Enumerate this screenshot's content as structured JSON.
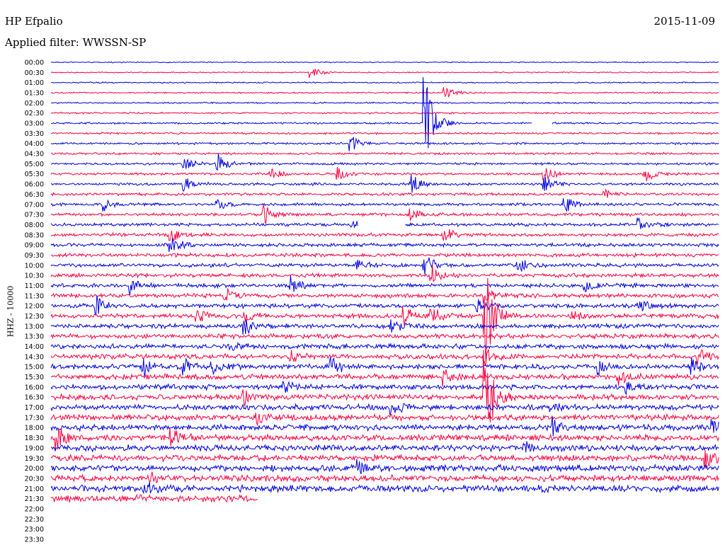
{
  "header": {
    "station": "HP Efpalio",
    "date": "2015-11-09",
    "filter_label": "Applied filter: WWSSN-SP"
  },
  "chart_data": {
    "type": "line",
    "title": "HP Efpalio",
    "subtitle": "Applied filter: WWSSN-SP",
    "ylabel": "HHZ - 10000",
    "xlabel": "",
    "rows": [
      "00:00",
      "00:30",
      "01:00",
      "01:30",
      "02:00",
      "02:30",
      "03:00",
      "03:30",
      "04:00",
      "04:30",
      "05:00",
      "05:30",
      "06:00",
      "06:30",
      "07:00",
      "07:30",
      "08:00",
      "08:30",
      "09:00",
      "09:30",
      "10:00",
      "10:30",
      "11:00",
      "11:30",
      "12:00",
      "12:30",
      "13:00",
      "13:30",
      "14:00",
      "14:30",
      "15:00",
      "15:30",
      "16:00",
      "16:30",
      "17:00",
      "17:30",
      "18:00",
      "18:30",
      "19:00",
      "19:30",
      "20:00",
      "20:30",
      "21:00",
      "21:30",
      "22:00",
      "22:30",
      "23:00",
      "23:30"
    ],
    "trace_colors": [
      "#0000e0",
      "#ff0040"
    ],
    "rows_recorded": 44,
    "last_row_fraction": 0.31,
    "gaps": [
      {
        "row": "03:00",
        "start": 0.72,
        "end": 0.75
      },
      {
        "row": "08:00",
        "start": 0.46,
        "end": 0.53
      }
    ],
    "events": [
      {
        "row": "00:30",
        "pos": 0.39,
        "amp": 10
      },
      {
        "row": "01:30",
        "pos": 0.59,
        "amp": 9
      },
      {
        "row": "03:00",
        "pos": 0.56,
        "amp": 70
      },
      {
        "row": "04:00",
        "pos": 0.45,
        "amp": 10
      },
      {
        "row": "05:00",
        "pos": 0.2,
        "amp": 8
      },
      {
        "row": "05:00",
        "pos": 0.25,
        "amp": 14
      },
      {
        "row": "05:30",
        "pos": 0.33,
        "amp": 8
      },
      {
        "row": "05:30",
        "pos": 0.43,
        "amp": 8
      },
      {
        "row": "05:30",
        "pos": 0.74,
        "amp": 10
      },
      {
        "row": "05:30",
        "pos": 0.89,
        "amp": 12
      },
      {
        "row": "06:00",
        "pos": 0.2,
        "amp": 10
      },
      {
        "row": "06:00",
        "pos": 0.54,
        "amp": 14
      },
      {
        "row": "06:00",
        "pos": 0.74,
        "amp": 9
      },
      {
        "row": "06:30",
        "pos": 0.83,
        "amp": 7
      },
      {
        "row": "07:00",
        "pos": 0.08,
        "amp": 9
      },
      {
        "row": "07:00",
        "pos": 0.25,
        "amp": 7
      },
      {
        "row": "07:00",
        "pos": 0.77,
        "amp": 10
      },
      {
        "row": "07:30",
        "pos": 0.32,
        "amp": 12
      },
      {
        "row": "07:30",
        "pos": 0.54,
        "amp": 9
      },
      {
        "row": "08:00",
        "pos": 0.45,
        "amp": 7
      },
      {
        "row": "08:00",
        "pos": 0.88,
        "amp": 9
      },
      {
        "row": "08:30",
        "pos": 0.18,
        "amp": 10
      },
      {
        "row": "08:30",
        "pos": 0.59,
        "amp": 10
      },
      {
        "row": "09:00",
        "pos": 0.18,
        "amp": 12
      },
      {
        "row": "10:00",
        "pos": 0.46,
        "amp": 8
      },
      {
        "row": "10:00",
        "pos": 0.56,
        "amp": 14
      },
      {
        "row": "10:00",
        "pos": 0.7,
        "amp": 9
      },
      {
        "row": "10:30",
        "pos": 0.57,
        "amp": 14
      },
      {
        "row": "11:00",
        "pos": 0.12,
        "amp": 12
      },
      {
        "row": "11:00",
        "pos": 0.36,
        "amp": 12
      },
      {
        "row": "11:00",
        "pos": 0.8,
        "amp": 7
      },
      {
        "row": "11:30",
        "pos": 0.26,
        "amp": 12
      },
      {
        "row": "11:30",
        "pos": 0.65,
        "amp": 9
      },
      {
        "row": "12:00",
        "pos": 0.07,
        "amp": 12
      },
      {
        "row": "12:00",
        "pos": 0.64,
        "amp": 10
      },
      {
        "row": "12:00",
        "pos": 0.88,
        "amp": 9
      },
      {
        "row": "12:30",
        "pos": 0.22,
        "amp": 8
      },
      {
        "row": "12:30",
        "pos": 0.29,
        "amp": 8
      },
      {
        "row": "12:30",
        "pos": 0.53,
        "amp": 12
      },
      {
        "row": "12:30",
        "pos": 0.57,
        "amp": 12
      },
      {
        "row": "12:30",
        "pos": 0.65,
        "amp": 70
      },
      {
        "row": "12:30",
        "pos": 0.78,
        "amp": 9
      },
      {
        "row": "13:00",
        "pos": 0.29,
        "amp": 12
      },
      {
        "row": "13:00",
        "pos": 0.51,
        "amp": 9
      },
      {
        "row": "14:00",
        "pos": 0.27,
        "amp": 6
      },
      {
        "row": "14:30",
        "pos": 0.36,
        "amp": 9
      },
      {
        "row": "14:30",
        "pos": 0.65,
        "amp": 12
      },
      {
        "row": "14:30",
        "pos": 0.97,
        "amp": 12
      },
      {
        "row": "15:00",
        "pos": 0.14,
        "amp": 10
      },
      {
        "row": "15:00",
        "pos": 0.2,
        "amp": 10
      },
      {
        "row": "15:00",
        "pos": 0.24,
        "amp": 10
      },
      {
        "row": "15:00",
        "pos": 0.42,
        "amp": 12
      },
      {
        "row": "15:00",
        "pos": 0.82,
        "amp": 9
      },
      {
        "row": "15:00",
        "pos": 0.96,
        "amp": 12
      },
      {
        "row": "15:30",
        "pos": 0.59,
        "amp": 10
      },
      {
        "row": "15:30",
        "pos": 0.85,
        "amp": 9
      },
      {
        "row": "16:00",
        "pos": 0.35,
        "amp": 9
      },
      {
        "row": "16:00",
        "pos": 0.86,
        "amp": 9
      },
      {
        "row": "16:30",
        "pos": 0.29,
        "amp": 9
      },
      {
        "row": "16:30",
        "pos": 0.65,
        "amp": 70
      },
      {
        "row": "17:00",
        "pos": 0.51,
        "amp": 9
      },
      {
        "row": "17:00",
        "pos": 0.75,
        "amp": 6
      },
      {
        "row": "17:30",
        "pos": 0.31,
        "amp": 9
      },
      {
        "row": "18:00",
        "pos": 0.75,
        "amp": 12
      },
      {
        "row": "18:00",
        "pos": 0.99,
        "amp": 10
      },
      {
        "row": "18:30",
        "pos": 0.01,
        "amp": 18
      },
      {
        "row": "18:30",
        "pos": 0.18,
        "amp": 12
      },
      {
        "row": "19:00",
        "pos": 0.71,
        "amp": 6
      },
      {
        "row": "19:30",
        "pos": 0.98,
        "amp": 12
      },
      {
        "row": "20:00",
        "pos": 0.46,
        "amp": 9
      },
      {
        "row": "20:30",
        "pos": 0.15,
        "amp": 8
      },
      {
        "row": "21:00",
        "pos": 0.14,
        "amp": 10
      }
    ]
  }
}
